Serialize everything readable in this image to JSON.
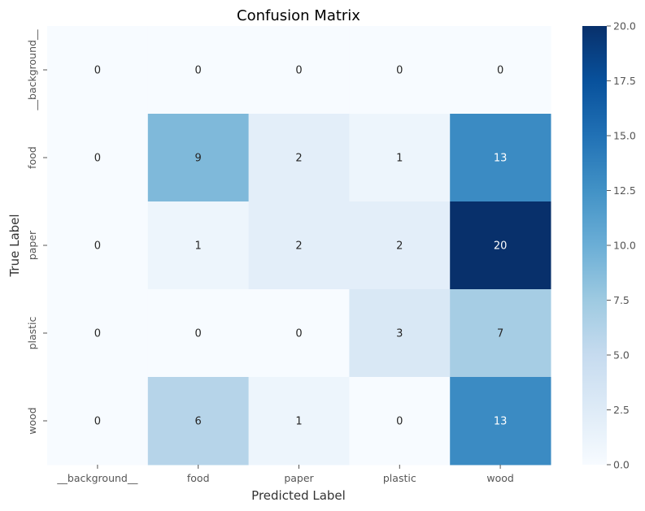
{
  "chart_data": {
    "type": "heatmap",
    "title": "Confusion Matrix",
    "xlabel": "Predicted Label",
    "ylabel": "True Label",
    "x_categories": [
      "__background__",
      "food",
      "paper",
      "plastic",
      "wood"
    ],
    "y_categories": [
      "__background__",
      "food",
      "paper",
      "plastic",
      "wood"
    ],
    "values": [
      [
        0,
        0,
        0,
        0,
        0
      ],
      [
        0,
        9,
        2,
        1,
        13
      ],
      [
        0,
        1,
        2,
        2,
        20
      ],
      [
        0,
        0,
        0,
        3,
        7
      ],
      [
        0,
        6,
        1,
        0,
        13
      ]
    ],
    "colormap": "Blues",
    "vmin": 0,
    "vmax": 20,
    "colorbar_ticks": [
      "0.0",
      "2.5",
      "5.0",
      "7.5",
      "10.0",
      "12.5",
      "15.0",
      "17.5",
      "20.0"
    ]
  }
}
